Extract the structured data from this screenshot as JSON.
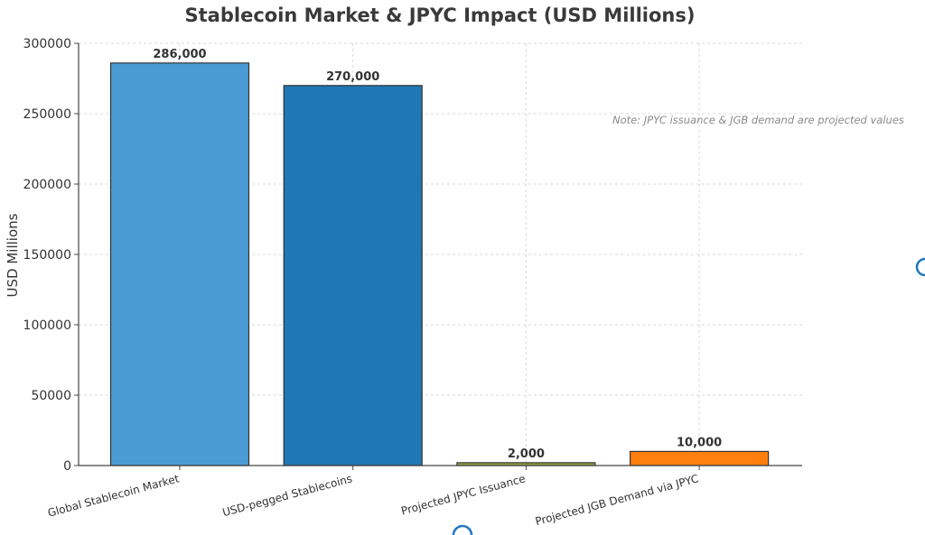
{
  "chart_data": {
    "type": "bar",
    "title": "Stablecoin Market & JPYC Impact (USD Millions)",
    "xlabel": "",
    "ylabel": "USD Millions",
    "ylim": [
      0,
      300000
    ],
    "yticks": [
      0,
      50000,
      100000,
      150000,
      200000,
      250000,
      300000
    ],
    "categories": [
      "Global Stablecoin Market",
      "USD-pegged Stablecoins",
      "Projected JPYC Issuance",
      "Projected JGB Demand via JPYC"
    ],
    "values": [
      286000,
      270000,
      2000,
      10000
    ],
    "data_labels": [
      "286,000",
      "270,000",
      "2,000",
      "10,000"
    ],
    "colors": [
      "#4a9bd4",
      "#1f77b4",
      "#8fa447",
      "#ff7f0e"
    ],
    "grid": true,
    "annotation": "Note: JPYC issuance & JGB demand are projected values"
  }
}
